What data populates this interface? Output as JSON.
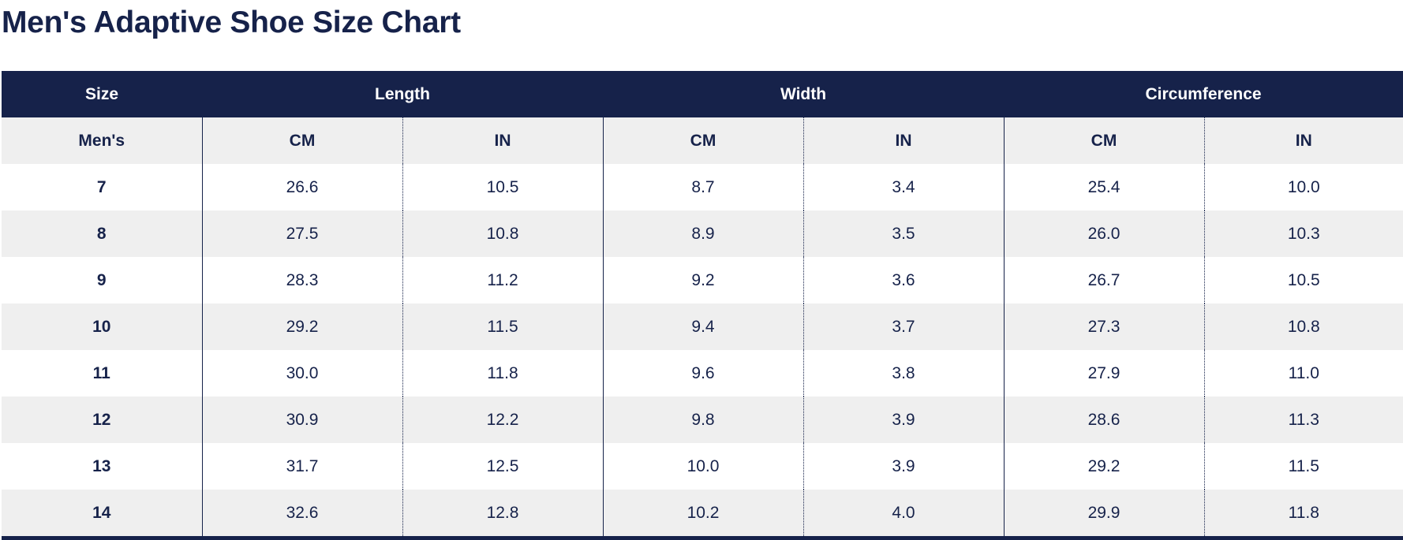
{
  "title": "Men's Adaptive Shoe Size Chart",
  "colors": {
    "header_bg": "#16224a",
    "header_text": "#ffffff",
    "stripe_bg": "#efefef",
    "text": "#16224a"
  },
  "table": {
    "groups": [
      "Size",
      "Length",
      "Width",
      "Circumference"
    ],
    "units": [
      "Men's",
      "CM",
      "IN",
      "CM",
      "IN",
      "CM",
      "IN"
    ],
    "rows": [
      [
        "7",
        "26.6",
        "10.5",
        "8.7",
        "3.4",
        "25.4",
        "10.0"
      ],
      [
        "8",
        "27.5",
        "10.8",
        "8.9",
        "3.5",
        "26.0",
        "10.3"
      ],
      [
        "9",
        "28.3",
        "11.2",
        "9.2",
        "3.6",
        "26.7",
        "10.5"
      ],
      [
        "10",
        "29.2",
        "11.5",
        "9.4",
        "3.7",
        "27.3",
        "10.8"
      ],
      [
        "11",
        "30.0",
        "11.8",
        "9.6",
        "3.8",
        "27.9",
        "11.0"
      ],
      [
        "12",
        "30.9",
        "12.2",
        "9.8",
        "3.9",
        "28.6",
        "11.3"
      ],
      [
        "13",
        "31.7",
        "12.5",
        "10.0",
        "3.9",
        "29.2",
        "11.5"
      ],
      [
        "14",
        "32.6",
        "12.8",
        "10.2",
        "4.0",
        "29.9",
        "11.8"
      ]
    ]
  }
}
